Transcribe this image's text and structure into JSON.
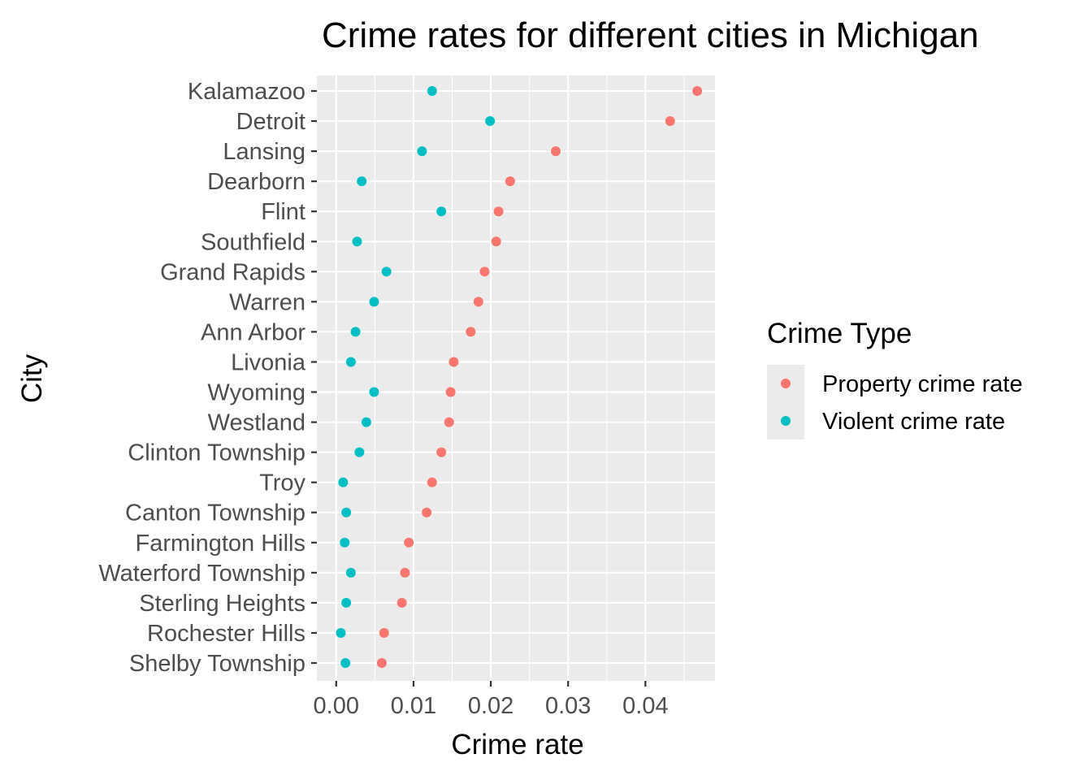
{
  "chart_data": {
    "type": "scatter",
    "title": "Crime rates for different cities in Michigan",
    "xlabel": "Crime rate",
    "ylabel": "City",
    "xlim": [
      -0.0025,
      0.049
    ],
    "x_ticks": [
      0.0,
      0.01,
      0.02,
      0.03,
      0.04
    ],
    "x_tick_labels": [
      "0.00",
      "0.01",
      "0.02",
      "0.03",
      "0.04"
    ],
    "grid": true,
    "legend": {
      "title": "Crime Type",
      "position": "right"
    },
    "categories": [
      "Kalamazoo",
      "Detroit",
      "Lansing",
      "Dearborn",
      "Flint",
      "Southfield",
      "Grand Rapids",
      "Warren",
      "Ann Arbor",
      "Livonia",
      "Wyoming",
      "Westland",
      "Clinton Township",
      "Troy",
      "Canton Township",
      "Farmington Hills",
      "Waterford Township",
      "Sterling Heights",
      "Rochester Hills",
      "Shelby Township"
    ],
    "series": [
      {
        "name": "Property crime rate",
        "color": "#F8766D",
        "values": [
          0.0467,
          0.0432,
          0.0284,
          0.0225,
          0.021,
          0.0207,
          0.0192,
          0.0184,
          0.0174,
          0.0152,
          0.0148,
          0.0146,
          0.0136,
          0.0124,
          0.0117,
          0.0094,
          0.0089,
          0.0085,
          0.0062,
          0.0059
        ]
      },
      {
        "name": "Violent crime rate",
        "color": "#00BFC4",
        "values": [
          0.0124,
          0.0199,
          0.0111,
          0.0033,
          0.0136,
          0.0027,
          0.0065,
          0.0049,
          0.0025,
          0.0019,
          0.0049,
          0.0039,
          0.003,
          0.0009,
          0.0013,
          0.0011,
          0.0019,
          0.0013,
          0.0006,
          0.0012
        ]
      }
    ]
  }
}
